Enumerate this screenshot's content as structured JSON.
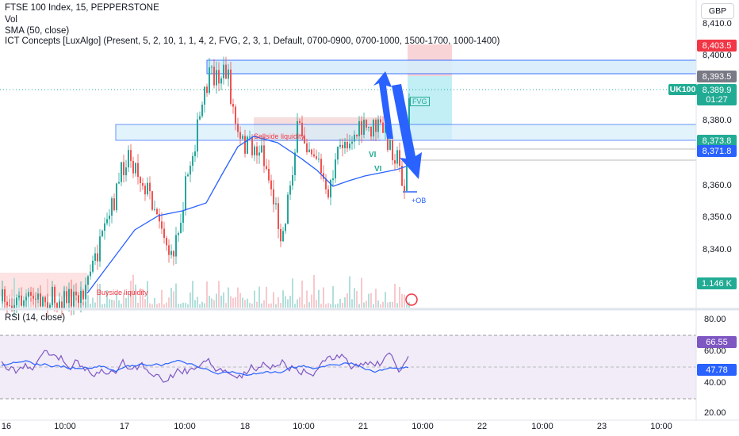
{
  "legend": {
    "symbol_line": "FTSE 100 Index, 15, PEPPERSTONE",
    "vol": "Vol",
    "sma": "SMA (50, close)",
    "ict": "ICT Concepts [LuxAlgo] (Present, 5, 2, 10, 1, 1, 4, 2, FVG, 2, 3, 1, Default, 0700-0900, 0700-1000, 1500-1700, 1000-1400)"
  },
  "currency": "GBP",
  "price_axis": [
    "8,410.0",
    "8,400.0",
    "8,380.0",
    "8,360.0",
    "8,350.0",
    "8,340.0"
  ],
  "badges": {
    "upper": "8,403.5",
    "gray": "8,393.5",
    "current": "8,389.9",
    "countdown": "01:27",
    "level1": "8,373.8",
    "level2": "8,371.8",
    "volume": "1.146 K",
    "rsi_value": "66.55",
    "rsi_ma": "47.78"
  },
  "symbol_tag": "UK100",
  "rsi": {
    "title": "RSI (14, close)",
    "axis": [
      "80.00",
      "60.00",
      "40.00",
      "20.00"
    ]
  },
  "annotations": {
    "sellside": "Sellside liquidity",
    "buyside": "Buyside liquidity",
    "vi1": "VI",
    "vi2": "VI",
    "fvg": "FVG",
    "ob": "+OB"
  },
  "time_axis": [
    "16",
    "10:00",
    "17",
    "10:00",
    "18",
    "10:00",
    "21",
    "10:00",
    "22",
    "10:00",
    "23",
    "10:00"
  ],
  "colors": {
    "up": "#26a69a",
    "down": "#ef5350",
    "sma": "#2962ff",
    "rsi": "#7e57c2",
    "blue_arrow": "#2962ff"
  }
}
